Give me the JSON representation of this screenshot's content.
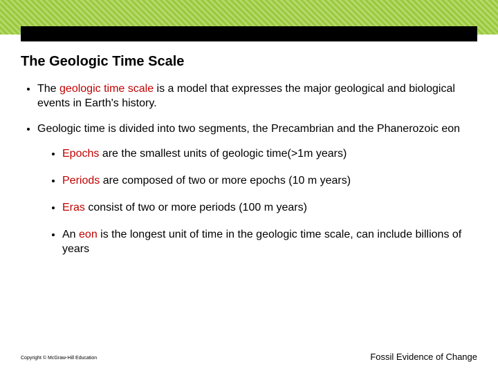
{
  "header": {
    "band_pattern_colors": [
      "#9ac83e",
      "#b5d96a"
    ],
    "black_bar_color": "#000000"
  },
  "title": "The Geologic Time Scale",
  "bullets": {
    "b1_prefix": "The ",
    "b1_term": "geologic time scale",
    "b1_suffix": " is a model that expresses the major geological and biological events in Earth's history.",
    "b2": "Geologic time is divided into two segments, the Precambrian and the Phanerozoic eon",
    "sub1_term": "Epochs",
    "sub1_suffix": " are the smallest units of geologic time(>1m years)",
    "sub2_term": "Periods",
    "sub2_suffix": " are composed of two or more epochs (10 m years)",
    "sub3_term": "Eras",
    "sub3_suffix": " consist of two or more periods (100 m years)",
    "sub4_prefix": "An ",
    "sub4_term": "eon",
    "sub4_suffix": " is the longest unit of time in the geologic time scale, can include billions of years"
  },
  "footer": {
    "copyright": "Copyright © McGraw-Hill Education",
    "right_text": "Fossil Evidence of Change"
  },
  "style": {
    "term_color": "#c00000",
    "title_fontsize": 20,
    "body_fontsize": 16,
    "background_color": "#ffffff"
  }
}
